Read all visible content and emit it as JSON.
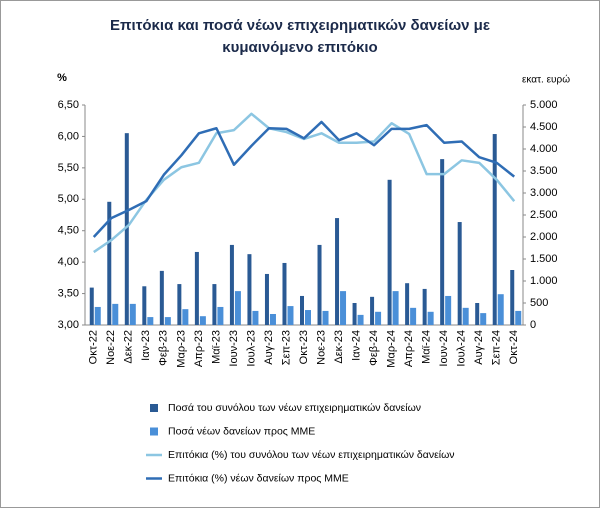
{
  "chart_data": {
    "type": "combo",
    "title": "Επιτόκια και ποσά νέων επιχειρηματικών δανείων με κυμαινόμενο επιτόκιο",
    "y_label": "%",
    "y2_label": "εκατ. ευρώ",
    "categories": [
      "Οκτ-22",
      "Νοε-22",
      "Δεκ-22",
      "Ιαν-23",
      "Φεβ-23",
      "Μαρ-23",
      "Απρ-23",
      "Μαϊ-23",
      "Ιουν-23",
      "Ιουλ-23",
      "Αυγ-23",
      "Σεπ-23",
      "Οκτ-23",
      "Νοε-23",
      "Δεκ-23",
      "Ιαν-24",
      "Φεβ-24",
      "Μαρ-24",
      "Απρ-24",
      "Μαϊ-24",
      "Ιουν-24",
      "Ιουλ-24",
      "Αυγ-24",
      "Σεπ-24",
      "Οκτ-24"
    ],
    "series": [
      {
        "name": "Ποσά του συνόλου των νέων επιχειρηματικών δανείων",
        "type": "bar",
        "axis": "y2",
        "color": "#2a5a94",
        "values": [
          850,
          2800,
          4360,
          880,
          1230,
          930,
          1660,
          930,
          1820,
          1610,
          1160,
          1410,
          660,
          1820,
          2430,
          500,
          640,
          3300,
          950,
          820,
          3770,
          2340,
          500,
          4340,
          1250
        ]
      },
      {
        "name": "Ποσά νέων δανείων προς ΜΜΕ",
        "type": "bar",
        "axis": "y2",
        "color": "#4a8fd8",
        "values": [
          410,
          480,
          480,
          180,
          180,
          360,
          200,
          410,
          770,
          320,
          250,
          430,
          340,
          320,
          770,
          230,
          300,
          770,
          390,
          300,
          660,
          390,
          270,
          700,
          320
        ]
      },
      {
        "name": "Επιτόκια (%) του συνόλου των νέων επιχειρηματικών δανείων",
        "type": "line",
        "axis": "y",
        "color": "#8cc6e2",
        "values": [
          4.16,
          4.35,
          4.59,
          4.99,
          5.31,
          5.51,
          5.58,
          6.05,
          6.1,
          6.36,
          6.13,
          6.07,
          5.96,
          6.05,
          5.9,
          5.9,
          5.92,
          6.21,
          6.04,
          5.4,
          5.4,
          5.62,
          5.58,
          5.31,
          4.97
        ]
      },
      {
        "name": "Επιτόκια (%) νέων δανείων προς ΜΜΕ",
        "type": "line",
        "axis": "y",
        "color": "#2f6db5",
        "values": [
          4.4,
          4.7,
          4.83,
          4.97,
          5.39,
          5.7,
          6.05,
          6.13,
          5.55,
          5.85,
          6.13,
          6.12,
          5.97,
          6.23,
          5.94,
          6.05,
          5.86,
          6.12,
          6.12,
          6.18,
          5.9,
          5.92,
          5.67,
          5.58,
          5.36
        ]
      }
    ],
    "ylim": [
      3,
      6.5
    ],
    "yticks": [
      {
        "value": 3,
        "label": "3,00"
      },
      {
        "value": 3.5,
        "label": "3,50"
      },
      {
        "value": 4,
        "label": "4,00"
      },
      {
        "value": 4.5,
        "label": "4,50"
      },
      {
        "value": 5,
        "label": "5,00"
      },
      {
        "value": 5.5,
        "label": "5,50"
      },
      {
        "value": 6,
        "label": "6,00"
      },
      {
        "value": 6.5,
        "label": "6,50"
      }
    ],
    "y2lim": [
      0,
      5000
    ],
    "y2ticks": [
      0,
      500,
      {
        "value": 1000,
        "label": "1.000"
      },
      {
        "value": 1500,
        "label": "1.500"
      },
      {
        "value": 2000,
        "label": "2.000"
      },
      {
        "value": 2500,
        "label": "2.500"
      },
      {
        "value": 3000,
        "label": "3.000"
      },
      {
        "value": 3500,
        "label": "3.500"
      },
      {
        "value": 4000,
        "label": "4.000"
      },
      {
        "value": 4500,
        "label": "4.500"
      },
      {
        "value": 5000,
        "label": "5.000"
      }
    ],
    "grid": false
  }
}
